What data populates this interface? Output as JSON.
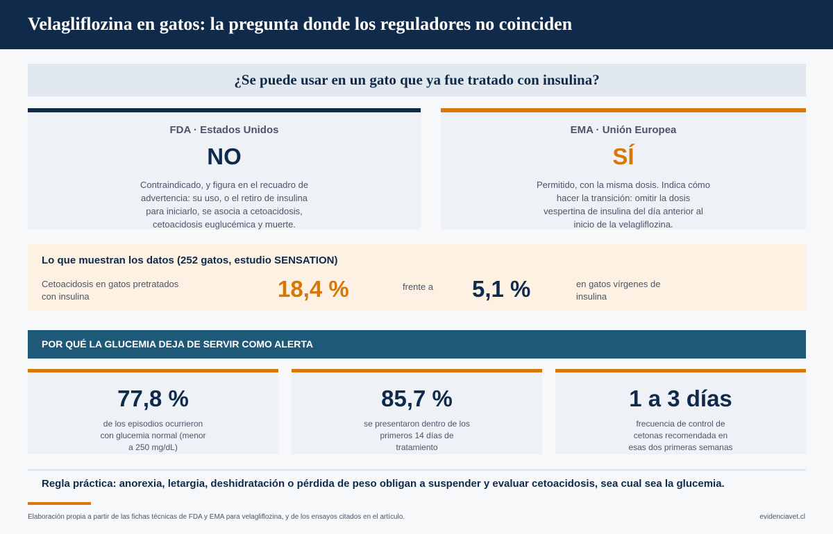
{
  "header": {
    "title": "Velagliflozina en gatos: la pregunta donde los reguladores no coinciden"
  },
  "question": "¿Se puede usar en un gato que ya fue tratado con insulina?",
  "regulators": {
    "fda": {
      "agency": "FDA  ·  Estados Unidos",
      "verdict": "NO",
      "description": "Contraindicado, y figura en el recuadro de advertencia: su uso, o el retiro de insulina para iniciarlo, se asocia a cetoacidosis, cetoacidosis euglucémica y muerte."
    },
    "ema": {
      "agency": "EMA  ·  Unión Europea",
      "verdict": "SÍ",
      "description": "Permitido, con la misma dosis. Indica cómo hacer la transición: omitir la dosis vespertina de insulina del día anterior al inicio de la velagliflozina."
    }
  },
  "data_box": {
    "title": "Lo que muestran los datos (252 gatos, estudio SENSATION)",
    "label_left": "Cetoacidosis en gatos pretratados con insulina",
    "value_left": "18,4 %",
    "connector": "frente a",
    "value_right": "5,1 %",
    "label_right": "en gatos vírgenes de insulina"
  },
  "band": {
    "title": "POR QUÉ LA GLUCEMIA DEJA DE SERVIR COMO ALERTA"
  },
  "stats": [
    {
      "value": "77,8 %",
      "description": "de los episodios ocurrieron con glucemia normal (menor a 250 mg/dL)"
    },
    {
      "value": "85,7 %",
      "description": "se presentaron dentro de los primeros 14 días de tratamiento"
    },
    {
      "value": "1 a 3 días",
      "description": "frecuencia de control de cetonas recomendada en esas dos primeras semanas"
    }
  ],
  "rule": "Regla práctica: anorexia, letargia, deshidratación o pérdida de peso obligan a suspender y evaluar cetoacidosis, sea cual sea la glucemia.",
  "footer": {
    "source": "Elaboración propia a partir de las fichas técnicas de FDA y EMA para velagliflozina, y de los ensayos citados en el artículo.",
    "site": "evidenciavet.cl"
  },
  "colors": {
    "navy": "#0f2a4a",
    "orange": "#d97706",
    "teal": "#1e5a78",
    "cream": "#fdf1e4"
  }
}
